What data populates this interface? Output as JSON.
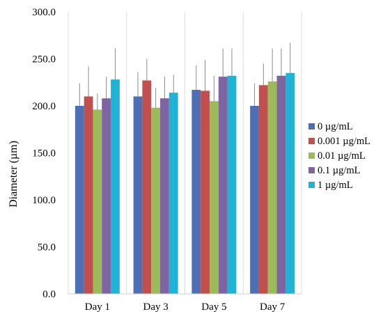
{
  "chart_data": {
    "type": "bar",
    "title": "",
    "xlabel": "",
    "ylabel": "Diameter (µm)",
    "ylim": [
      0,
      300
    ],
    "y_ticks": [
      "0.0",
      "50.0",
      "100.0",
      "150.0",
      "200.0",
      "250.0",
      "300.0"
    ],
    "categories": [
      "Day 1",
      "Day 3",
      "Day 5",
      "Day 7"
    ],
    "grid": "vertical lines between categories",
    "legend_position": "right",
    "error_bars": "upper only",
    "series": [
      {
        "name": "0 µg/mL",
        "color": "#4f6fb5",
        "values": [
          200,
          210,
          217,
          200
        ],
        "errors": [
          24,
          26,
          26,
          24
        ]
      },
      {
        "name": "0.001 µg/mL",
        "color": "#c0504d",
        "values": [
          210,
          227,
          216,
          222
        ],
        "errors": [
          32,
          23,
          33,
          23
        ]
      },
      {
        "name": "0.01 µg/mL",
        "color": "#9bbb59",
        "values": [
          196,
          198,
          205,
          226
        ],
        "errors": [
          17,
          21,
          27,
          35
        ]
      },
      {
        "name": "0.1 µg/mL",
        "color": "#8064a2",
        "values": [
          208,
          208,
          231,
          232
        ],
        "errors": [
          23,
          23,
          30,
          29
        ]
      },
      {
        "name": "1 µg/mL",
        "color": "#1fb3d6",
        "values": [
          228,
          214,
          232,
          235
        ],
        "errors": [
          33,
          19,
          29,
          32
        ]
      }
    ]
  }
}
